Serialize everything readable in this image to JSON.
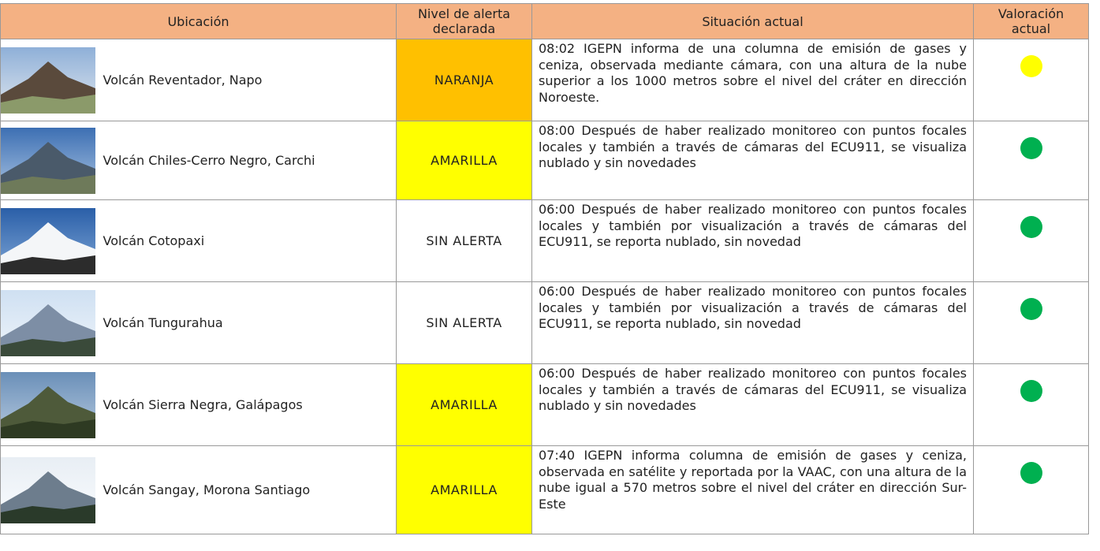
{
  "table": {
    "header": [
      "Ubicación",
      "Nivel de alerta declarada",
      "Situación actual",
      "Valoración actual"
    ],
    "rows": [
      {
        "location": "Volcán Reventador, Napo",
        "alert": "NARANJA",
        "alert_color": "#ffc000",
        "situation": "08:02 IGEPN informa de una columna de emisión de gases y ceniza, observada mediante cámara, con una altura de la nube superior a los 1000 metros sobre el nivel del cráter en dirección Noroeste.",
        "status_color": "#ffff00"
      },
      {
        "location": "Volcán Chiles-Cerro Negro, Carchi",
        "alert": "AMARILLA",
        "alert_color": "#ffff00",
        "situation": "08:00 Después de haber realizado monitoreo con puntos focales locales y también a través de cámaras del ECU911, se visualiza nublado y sin novedades",
        "status_color": "#00b050"
      },
      {
        "location": "Volcán Cotopaxi",
        "alert": "SIN ALERTA",
        "situation": "06:00 Después de haber realizado monitoreo con puntos focales locales y también por visualización a través de cámaras del ECU911, se reporta nublado, sin novedad",
        "status_color": "#00b050"
      },
      {
        "location": "Volcán Tungurahua",
        "alert": "SIN ALERTA",
        "situation": "06:00 Después de haber realizado monitoreo con puntos focales locales y también por visualización a través de cámaras del ECU911, se reporta nublado, sin novedad",
        "status_color": "#00b050"
      },
      {
        "location": "Volcán Sierra Negra, Galápagos",
        "alert": "AMARILLA",
        "alert_color": "#ffff00",
        "situation": "06:00 Después de haber realizado monitoreo con puntos focales locales y también a través de cámaras del ECU911, se visualiza nublado y sin novedades",
        "status_color": "#00b050"
      },
      {
        "location": "Volcán Sangay, Morona Santiago",
        "alert": "AMARILLA",
        "alert_color": "#ffff00",
        "situation": "07:40 IGEPN informa columna de emisión de gases y ceniza, observada en satélite y reportada por la VAAC, con una altura de la nube igual a 570 metros sobre el nivel del cráter en dirección Sur-Este",
        "status_color": "#00b050"
      }
    ]
  }
}
